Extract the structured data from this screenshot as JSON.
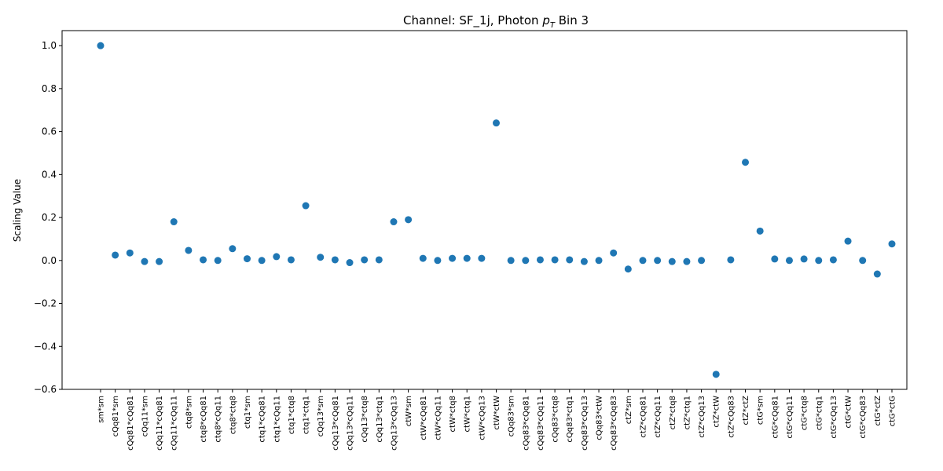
{
  "chart_data": {
    "type": "scatter",
    "title_prefix": "Channel: SF_1j, Photon ",
    "title_math_main": "p",
    "title_math_sub": "T",
    "title_suffix": " Bin 3",
    "xlabel": "",
    "ylabel": "Scaling Value",
    "ylim": [
      -0.6,
      1.07
    ],
    "yticks": [
      -0.6,
      -0.4,
      -0.2,
      0.0,
      0.2,
      0.4,
      0.6,
      0.8,
      1.0
    ],
    "ytick_labels": [
      "−0.6",
      "−0.4",
      "−0.2",
      "0.0",
      "0.2",
      "0.4",
      "0.6",
      "0.8",
      "1.0"
    ],
    "grid": false,
    "marker_color": "#1f77b4",
    "categories": [
      "sm*sm",
      "cQq81*sm",
      "cQq81*cQq81",
      "cQq11*sm",
      "cQq11*cQq81",
      "cQq11*cQq11",
      "ctq8*sm",
      "ctq8*cQq81",
      "ctq8*cQq11",
      "ctq8*ctq8",
      "ctq1*sm",
      "ctq1*cQq81",
      "ctq1*cQq11",
      "ctq1*ctq8",
      "ctq1*ctq1",
      "cQq13*sm",
      "cQq13*cQq81",
      "cQq13*cQq11",
      "cQq13*ctq8",
      "cQq13*ctq1",
      "cQq13*cQq13",
      "ctW*sm",
      "ctW*cQq81",
      "ctW*cQq11",
      "ctW*ctq8",
      "ctW*ctq1",
      "ctW*cQq13",
      "ctW*ctW",
      "cQq83*sm",
      "cQq83*cQq81",
      "cQq83*cQq11",
      "cQq83*ctq8",
      "cQq83*ctq1",
      "cQq83*cQq13",
      "cQq83*ctW",
      "cQq83*cQq83",
      "ctZ*sm",
      "ctZ*cQq81",
      "ctZ*cQq11",
      "ctZ*ctq8",
      "ctZ*ctq1",
      "ctZ*cQq13",
      "ctZ*ctW",
      "ctZ*cQq83",
      "ctZ*ctZ",
      "ctG*sm",
      "ctG*cQq81",
      "ctG*cQq11",
      "ctG*ctq8",
      "ctG*ctq1",
      "ctG*cQq13",
      "ctG*ctW",
      "ctG*cQq83",
      "ctG*ctZ",
      "ctG*ctG"
    ],
    "values": [
      1.0,
      0.025,
      0.035,
      -0.005,
      -0.005,
      0.18,
      0.047,
      0.003,
      0.0,
      0.055,
      0.008,
      0.0,
      0.018,
      0.003,
      0.255,
      0.015,
      0.003,
      -0.01,
      0.003,
      0.003,
      0.18,
      0.19,
      0.01,
      0.0,
      0.01,
      0.01,
      0.01,
      0.64,
      0.0,
      0.0,
      0.003,
      0.003,
      0.003,
      -0.005,
      0.0,
      0.035,
      -0.04,
      0.0,
      0.0,
      -0.005,
      -0.005,
      0.0,
      -0.53,
      0.003,
      0.457,
      0.137,
      0.007,
      0.0,
      0.007,
      0.0,
      0.003,
      0.09,
      0.0,
      -0.063,
      0.077
    ]
  }
}
